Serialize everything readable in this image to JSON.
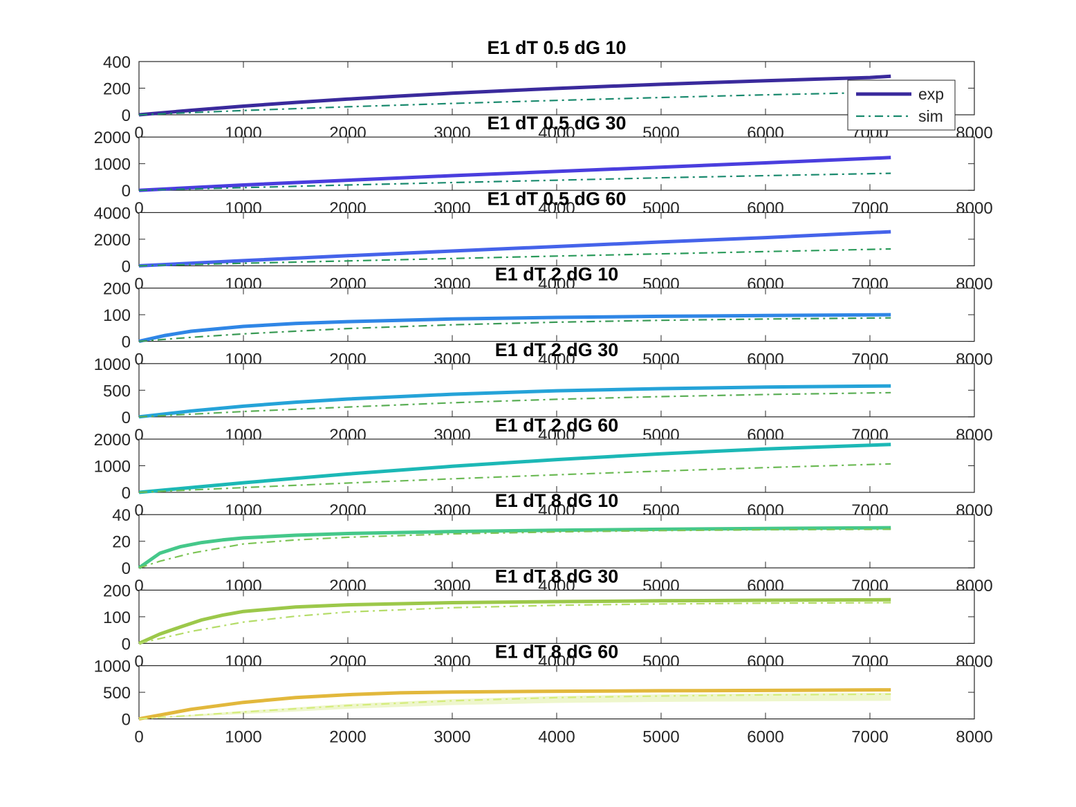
{
  "chart_data": [
    {
      "type": "line",
      "title": "E1 dT 0.5 dG 10",
      "xlim": [
        0,
        8000
      ],
      "ylim": [
        0,
        400
      ],
      "xticks": [
        0,
        1000,
        2000,
        3000,
        4000,
        5000,
        6000,
        7000,
        8000
      ],
      "yticks": [
        0,
        200,
        400
      ],
      "series": [
        {
          "name": "exp",
          "color": "#3a2a9c",
          "style": "solid",
          "x": [
            0,
            500,
            1000,
            1500,
            2000,
            2500,
            3000,
            3500,
            4000,
            4500,
            5000,
            5500,
            6000,
            6500,
            7000,
            7200
          ],
          "y": [
            0,
            34,
            65,
            93,
            118,
            141,
            162,
            181,
            198,
            214,
            229,
            243,
            256,
            268,
            280,
            290
          ]
        },
        {
          "name": "sim",
          "color": "#1a8a6e",
          "style": "dashdot",
          "x": [
            0,
            1000,
            2000,
            3000,
            4000,
            5000,
            6000,
            7200
          ],
          "y": [
            0,
            32,
            60,
            85,
            108,
            130,
            150,
            170
          ]
        }
      ]
    },
    {
      "type": "line",
      "title": "E1 dT 0.5 dG 30",
      "xlim": [
        0,
        8000
      ],
      "ylim": [
        0,
        2000
      ],
      "xticks": [
        0,
        1000,
        2000,
        3000,
        4000,
        5000,
        6000,
        7000,
        8000
      ],
      "yticks": [
        0,
        1000,
        2000
      ],
      "series": [
        {
          "name": "exp",
          "color": "#4a3ede",
          "style": "solid",
          "x": [
            0,
            1000,
            2000,
            3000,
            4000,
            5000,
            6000,
            7200
          ],
          "y": [
            0,
            200,
            380,
            550,
            710,
            870,
            1030,
            1230
          ]
        },
        {
          "name": "sim",
          "color": "#1a8a6e",
          "style": "dashdot",
          "x": [
            0,
            1000,
            2000,
            3000,
            4000,
            5000,
            6000,
            7200
          ],
          "y": [
            0,
            100,
            200,
            290,
            380,
            470,
            550,
            640
          ]
        }
      ]
    },
    {
      "type": "line",
      "title": "E1 dT 0.5 dG 60",
      "xlim": [
        0,
        8000
      ],
      "ylim": [
        0,
        4000
      ],
      "xticks": [
        0,
        1000,
        2000,
        3000,
        4000,
        5000,
        6000,
        7000,
        8000
      ],
      "yticks": [
        0,
        2000,
        4000
      ],
      "series": [
        {
          "name": "exp",
          "color": "#4563ea",
          "style": "solid",
          "x": [
            0,
            1000,
            2000,
            3000,
            4000,
            5000,
            6000,
            7200
          ],
          "y": [
            0,
            390,
            760,
            1110,
            1450,
            1790,
            2120,
            2560
          ]
        },
        {
          "name": "sim",
          "color": "#2a9a5a",
          "style": "dashdot",
          "x": [
            0,
            1000,
            2000,
            3000,
            4000,
            5000,
            6000,
            7200
          ],
          "y": [
            0,
            190,
            370,
            550,
            730,
            900,
            1070,
            1270
          ]
        }
      ]
    },
    {
      "type": "line",
      "title": "E1 dT 2 dG 10",
      "xlim": [
        0,
        8000
      ],
      "ylim": [
        0,
        200
      ],
      "xticks": [
        0,
        1000,
        2000,
        3000,
        4000,
        5000,
        6000,
        7000,
        8000
      ],
      "yticks": [
        0,
        100,
        200
      ],
      "series": [
        {
          "name": "exp",
          "color": "#2f86e6",
          "style": "solid",
          "x": [
            0,
            250,
            500,
            1000,
            1500,
            2000,
            3000,
            4000,
            5000,
            6000,
            7200
          ],
          "y": [
            0,
            22,
            38,
            56,
            67,
            74,
            84,
            90,
            94,
            97,
            100
          ]
        },
        {
          "name": "sim",
          "color": "#3a9a55",
          "style": "dashdot",
          "x": [
            0,
            500,
            1000,
            2000,
            3000,
            4000,
            5000,
            6000,
            7200
          ],
          "y": [
            0,
            15,
            28,
            48,
            62,
            72,
            79,
            84,
            88
          ]
        }
      ]
    },
    {
      "type": "line",
      "title": "E1 dT 2 dG 30",
      "xlim": [
        0,
        8000
      ],
      "ylim": [
        0,
        1000
      ],
      "xticks": [
        0,
        1000,
        2000,
        3000,
        4000,
        5000,
        6000,
        7000,
        8000
      ],
      "yticks": [
        0,
        500,
        1000
      ],
      "series": [
        {
          "name": "exp",
          "color": "#25a3d8",
          "style": "solid",
          "x": [
            0,
            500,
            1000,
            1500,
            2000,
            3000,
            4000,
            5000,
            6000,
            7200
          ],
          "y": [
            0,
            110,
            200,
            275,
            335,
            425,
            490,
            530,
            560,
            580
          ]
        },
        {
          "name": "sim",
          "color": "#5aae55",
          "style": "dashdot",
          "x": [
            0,
            1000,
            2000,
            3000,
            4000,
            5000,
            6000,
            7200
          ],
          "y": [
            0,
            100,
            185,
            265,
            330,
            380,
            420,
            455
          ]
        }
      ]
    },
    {
      "type": "line",
      "title": "E1 dT 2 dG 60",
      "xlim": [
        0,
        8000
      ],
      "ylim": [
        0,
        2000
      ],
      "xticks": [
        0,
        1000,
        2000,
        3000,
        4000,
        5000,
        6000,
        7000,
        8000
      ],
      "yticks": [
        0,
        1000,
        2000
      ],
      "series": [
        {
          "name": "exp",
          "color": "#1cb8b6",
          "style": "solid",
          "x": [
            0,
            1000,
            2000,
            3000,
            4000,
            5000,
            6000,
            7200
          ],
          "y": [
            0,
            360,
            690,
            980,
            1230,
            1450,
            1630,
            1800
          ]
        },
        {
          "name": "sim",
          "color": "#6cba55",
          "style": "dashdot",
          "x": [
            0,
            1000,
            2000,
            3000,
            4000,
            5000,
            6000,
            7200
          ],
          "y": [
            0,
            180,
            350,
            510,
            660,
            800,
            930,
            1070
          ]
        }
      ]
    },
    {
      "type": "line",
      "title": "E1 dT 8 dG 10",
      "xlim": [
        0,
        8000
      ],
      "ylim": [
        0,
        40
      ],
      "xticks": [
        0,
        1000,
        2000,
        3000,
        4000,
        5000,
        6000,
        7000,
        8000
      ],
      "yticks": [
        0,
        20,
        40
      ],
      "series": [
        {
          "name": "exp",
          "color": "#45c88a",
          "style": "solid",
          "x": [
            0,
            200,
            400,
            600,
            800,
            1000,
            1500,
            2000,
            3000,
            4000,
            5000,
            6000,
            7200
          ],
          "y": [
            0,
            11,
            16,
            19,
            21,
            22.5,
            24.5,
            25.8,
            27.3,
            28.3,
            29,
            29.6,
            30.2
          ]
        },
        {
          "name": "sim",
          "color": "#7cc455",
          "style": "dashdot",
          "x": [
            0,
            200,
            500,
            1000,
            1500,
            2000,
            3000,
            4000,
            5000,
            6000,
            7200
          ],
          "y": [
            0,
            5,
            11,
            18,
            21,
            23,
            25.5,
            27,
            28,
            28.6,
            29
          ]
        }
      ]
    },
    {
      "type": "line",
      "title": "E1 dT 8 dG 30",
      "xlim": [
        0,
        8000
      ],
      "ylim": [
        0,
        200
      ],
      "xticks": [
        0,
        1000,
        2000,
        3000,
        4000,
        5000,
        6000,
        7000,
        8000
      ],
      "yticks": [
        0,
        100,
        200
      ],
      "series": [
        {
          "name": "exp",
          "color": "#9cc84a",
          "style": "solid",
          "x": [
            0,
            200,
            400,
            600,
            800,
            1000,
            1500,
            2000,
            3000,
            4000,
            5000,
            6000,
            7200
          ],
          "y": [
            0,
            35,
            62,
            88,
            106,
            120,
            137,
            145,
            153,
            157,
            160,
            162,
            164
          ]
        },
        {
          "name": "sim",
          "color": "#b4dc68",
          "style": "dashdot",
          "x": [
            0,
            500,
            1000,
            1500,
            2000,
            3000,
            4000,
            5000,
            6000,
            7200
          ],
          "y": [
            0,
            45,
            80,
            102,
            118,
            134,
            143,
            148,
            151,
            153
          ]
        }
      ]
    },
    {
      "type": "line",
      "title": "E1 dT 8 dG 60",
      "xlim": [
        0,
        8000
      ],
      "ylim": [
        0,
        1000
      ],
      "xticks": [
        0,
        1000,
        2000,
        3000,
        4000,
        5000,
        6000,
        7000,
        8000
      ],
      "yticks": [
        0,
        500,
        1000
      ],
      "series": [
        {
          "name": "exp",
          "color": "#e2b83c",
          "style": "solid",
          "x": [
            0,
            500,
            1000,
            1500,
            2000,
            2500,
            3000,
            4000,
            5000,
            6000,
            7200
          ],
          "y": [
            0,
            180,
            310,
            400,
            455,
            490,
            505,
            520,
            528,
            535,
            545
          ]
        },
        {
          "name": "sim",
          "color": "#d4ec7a",
          "style": "dashdot",
          "x": [
            0,
            1000,
            2000,
            3000,
            4000,
            5000,
            6000,
            7200
          ],
          "y": [
            0,
            130,
            250,
            340,
            400,
            430,
            450,
            465
          ]
        }
      ],
      "band": {
        "color": "#eef6cc",
        "x": [
          0,
          1000,
          2000,
          3000,
          4000,
          5000,
          6000,
          7200
        ],
        "lower": [
          0,
          90,
          190,
          260,
          300,
          320,
          330,
          340
        ],
        "upper": [
          0,
          150,
          280,
          370,
          430,
          460,
          480,
          490
        ]
      }
    }
  ],
  "legend": {
    "placement": "top-right",
    "items": [
      {
        "label": "exp",
        "color": "#3a2a9c",
        "style": "solid"
      },
      {
        "label": "sim",
        "color": "#1a8a6e",
        "style": "dashdot"
      }
    ]
  }
}
